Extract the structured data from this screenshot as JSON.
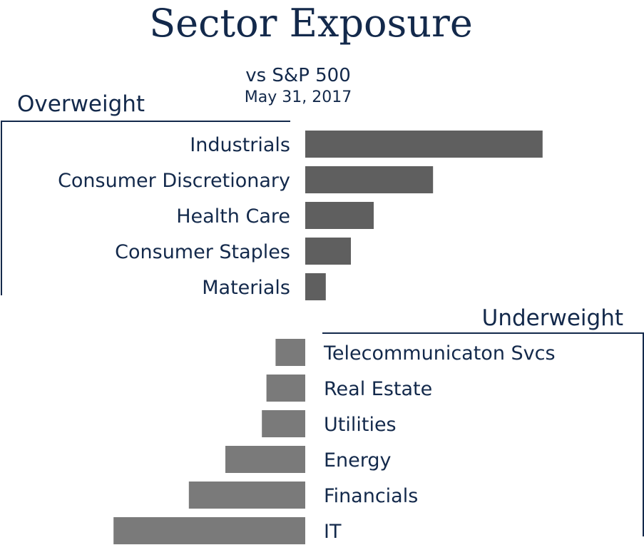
{
  "chart_data": {
    "type": "bar",
    "orientation": "horizontal",
    "title": "Sector Exposure",
    "subtitle": "vs S&P 500",
    "date": "May 31, 2017",
    "overweight_label": "Overweight",
    "underweight_label": "Underweight",
    "colors": {
      "text": "#13294b",
      "overweight": "#5f5f5f",
      "underweight": "#7a7a7a",
      "bracket": "#13294b"
    },
    "overweight": [
      {
        "category": "Industrials",
        "value": 5.2
      },
      {
        "category": "Consumer Discretionary",
        "value": 2.8
      },
      {
        "category": "Health Care",
        "value": 1.5
      },
      {
        "category": "Consumer Staples",
        "value": 1.0
      },
      {
        "category": "Materials",
        "value": 0.45
      }
    ],
    "underweight": [
      {
        "category": "Telecommunicaton Svcs",
        "value": -0.65
      },
      {
        "category": "Real Estate",
        "value": -0.85
      },
      {
        "category": "Utilities",
        "value": -0.95
      },
      {
        "category": "Energy",
        "value": -1.75
      },
      {
        "category": "Financials",
        "value": -2.55
      },
      {
        "category": "IT",
        "value": -4.2
      }
    ]
  }
}
